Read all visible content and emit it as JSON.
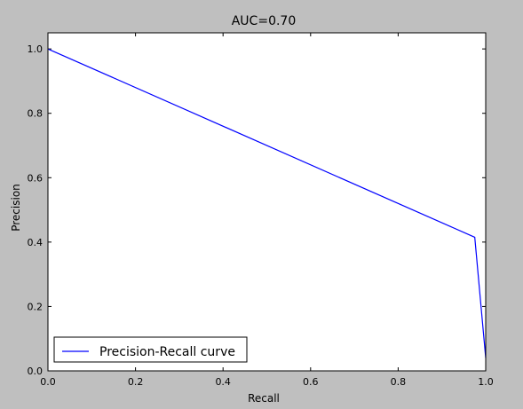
{
  "chart_data": {
    "type": "line",
    "title": "AUC=0.70",
    "xlabel": "Recall",
    "ylabel": "Precision",
    "xlim": [
      0.0,
      1.0
    ],
    "ylim": [
      0.0,
      1.05
    ],
    "xticks": [
      "0.0",
      "0.2",
      "0.4",
      "0.6",
      "0.8",
      "1.0"
    ],
    "yticks": [
      "0.0",
      "0.2",
      "0.4",
      "0.6",
      "0.8",
      "1.0"
    ],
    "grid": false,
    "legend_position": "lower-left",
    "series": [
      {
        "name": "Precision-Recall curve",
        "color": "#0000ff",
        "x": [
          0.0,
          0.975,
          1.0
        ],
        "y": [
          1.0,
          0.415,
          0.04
        ]
      }
    ]
  }
}
